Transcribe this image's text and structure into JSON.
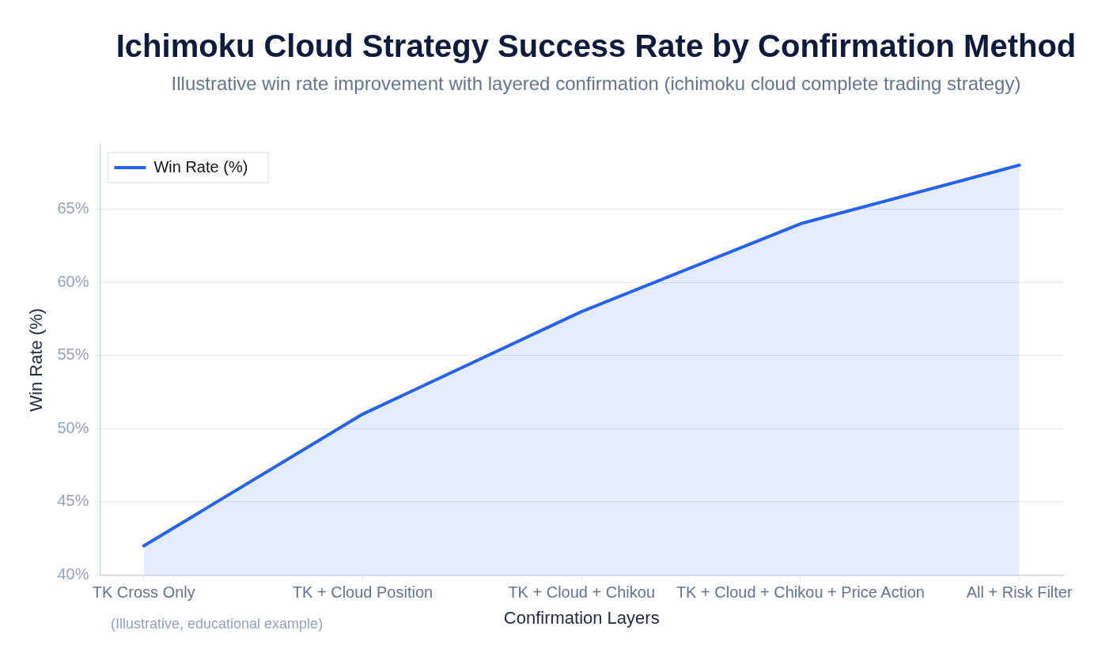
{
  "chart_data": {
    "type": "area",
    "title": "Ichimoku Cloud Strategy Success Rate by Confirmation Method",
    "subtitle": "Illustrative win rate improvement with layered confirmation (ichimoku cloud complete trading strategy)",
    "xlabel": "Confirmation Layers",
    "ylabel": "Win Rate (%)",
    "categories": [
      "TK Cross Only",
      "TK + Cloud Position",
      "TK + Cloud + Chikou",
      "TK + Cloud + Chikou + Price Action",
      "All + Risk Filter"
    ],
    "series": [
      {
        "name": "Win Rate (%)",
        "color": "#2563eb",
        "values": [
          42,
          51,
          58,
          64,
          68
        ]
      }
    ],
    "ylim": [
      40,
      69.4
    ],
    "yticks": [
      {
        "value": 40,
        "label": "40%"
      },
      {
        "value": 45,
        "label": "45%"
      },
      {
        "value": 50,
        "label": "50%"
      },
      {
        "value": 55,
        "label": "55%"
      },
      {
        "value": 60,
        "label": "60%"
      },
      {
        "value": 65,
        "label": "65%"
      }
    ],
    "grid": "y",
    "legend": "top left",
    "annotations": [
      "(Illustrative, educational example)"
    ]
  }
}
